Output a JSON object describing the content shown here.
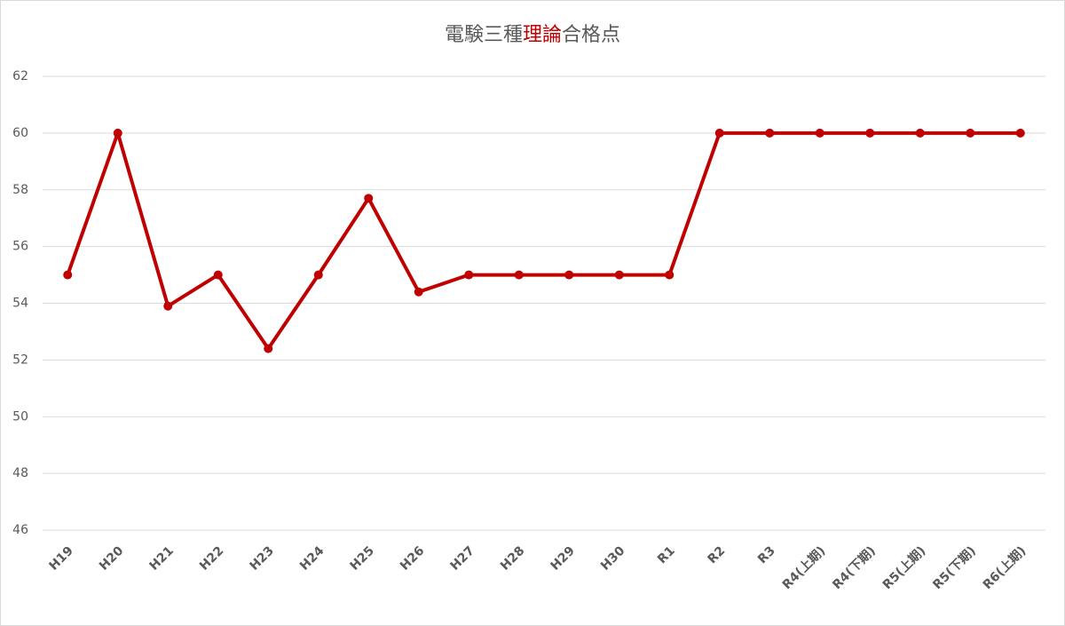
{
  "chart_data": {
    "type": "line",
    "title_parts": [
      {
        "text": "電験三種",
        "color": "#595959"
      },
      {
        "text": "理論",
        "color": "#c00000"
      },
      {
        "text": "合格点",
        "color": "#595959"
      }
    ],
    "categories": [
      "H19",
      "H20",
      "H21",
      "H22",
      "H23",
      "H24",
      "H25",
      "H26",
      "H27",
      "H28",
      "H29",
      "H30",
      "R1",
      "R2",
      "R3",
      "R4(上期)",
      "R4(下期)",
      "R5(上期)",
      "R5(下期)",
      "R6(上期)"
    ],
    "series": [
      {
        "color": "#c00000",
        "values": [
          55,
          60,
          53.9,
          55,
          52.4,
          55,
          57.7,
          54.4,
          55,
          55,
          55,
          55,
          55,
          60,
          60,
          60,
          60,
          60,
          60,
          60
        ]
      }
    ],
    "ylim": [
      46,
      62
    ],
    "yticks": [
      46,
      48,
      50,
      52,
      54,
      56,
      58,
      60,
      62
    ],
    "grid": true
  }
}
